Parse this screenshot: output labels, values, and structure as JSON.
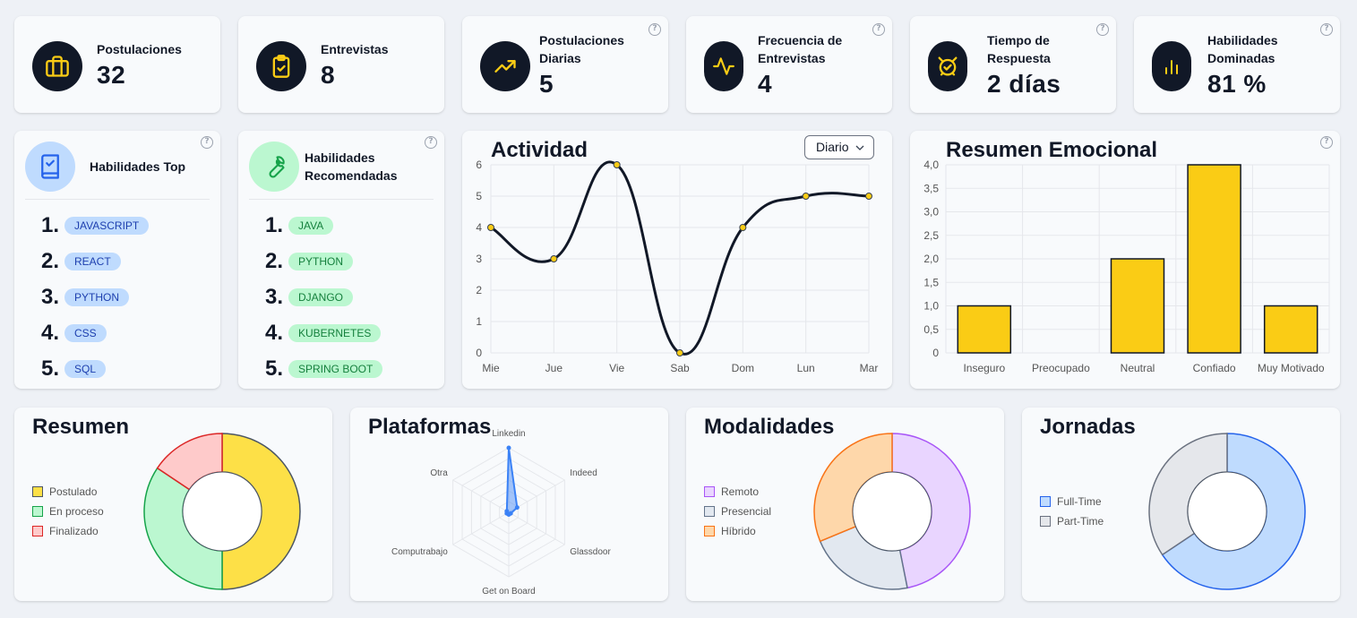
{
  "stats": [
    {
      "label": "Postulaciones",
      "value": "32",
      "icon": "briefcase-icon",
      "help": false
    },
    {
      "label": "Entrevistas",
      "value": "8",
      "icon": "clipboard-check-icon",
      "help": false
    },
    {
      "label": "Postulaciones Diarias",
      "value": "5",
      "icon": "trending-up-icon",
      "help": true
    },
    {
      "label": "Frecuencia de Entrevistas",
      "value": "4",
      "icon": "activity-icon",
      "help": true
    },
    {
      "label": "Tiempo de Respuesta",
      "value": "2 días",
      "icon": "alarm-clock-icon",
      "help": true
    },
    {
      "label": "Habilidades Dominadas",
      "value": "81 %",
      "icon": "bar-chart-icon",
      "help": true
    }
  ],
  "help_glyph": "?",
  "top_skills": {
    "title": "Habilidades Top",
    "icon": "book-check-icon",
    "items": [
      {
        "num": "1.",
        "label": "JAVASCRIPT"
      },
      {
        "num": "2.",
        "label": "REACT"
      },
      {
        "num": "3.",
        "label": "PYTHON"
      },
      {
        "num": "4.",
        "label": "CSS"
      },
      {
        "num": "5.",
        "label": "SQL"
      }
    ]
  },
  "recommended_skills": {
    "title": "Habilidades Recomendadas",
    "icon": "wrench-icon",
    "items": [
      {
        "num": "1.",
        "label": "JAVA"
      },
      {
        "num": "2.",
        "label": "PYTHON"
      },
      {
        "num": "3.",
        "label": "DJANGO"
      },
      {
        "num": "4.",
        "label": "KUBERNETES"
      },
      {
        "num": "5.",
        "label": "SPRING BOOT"
      }
    ]
  },
  "activity": {
    "title": "Actividad",
    "dropdown": "Diario",
    "dropdown_icon": "chevron-down-icon"
  },
  "emotional": {
    "title": "Resumen Emocional"
  },
  "summary": {
    "title": "Resumen"
  },
  "platforms": {
    "title": "Plataformas"
  },
  "modalities": {
    "title": "Modalidades"
  },
  "schedules": {
    "title": "Jornadas"
  },
  "chart_data": [
    {
      "id": "activity",
      "type": "line",
      "x": [
        "Mie",
        "Jue",
        "Vie",
        "Sab",
        "Dom",
        "Lun",
        "Mar"
      ],
      "values": [
        4,
        3,
        6,
        0,
        4,
        5,
        5
      ],
      "ylim": [
        0,
        6
      ],
      "yticks": [
        "0",
        "1",
        "2",
        "3",
        "4",
        "5",
        "6"
      ],
      "line_color": "#111827",
      "point_color": "#facc15"
    },
    {
      "id": "emotional",
      "type": "bar",
      "categories": [
        "Inseguro",
        "Preocupado",
        "Neutral",
        "Confiado",
        "Muy Motivado"
      ],
      "values": [
        1,
        0,
        2,
        4,
        1
      ],
      "ylim": [
        0,
        4
      ],
      "yticks": [
        "0",
        "0,5",
        "1,0",
        "1,5",
        "2,0",
        "2,5",
        "3,0",
        "3,5",
        "4,0"
      ],
      "bar_color": "#facc15"
    },
    {
      "id": "summary",
      "type": "pie",
      "donut": true,
      "labels": [
        "Postulado",
        "En proceso",
        "Finalizado"
      ],
      "values": [
        16,
        11,
        5
      ],
      "fill": [
        "#fde047",
        "#bbf7d0",
        "#fecaca"
      ],
      "stroke": [
        "#4b5563",
        "#16a34a",
        "#dc2626"
      ]
    },
    {
      "id": "platforms",
      "type": "radar",
      "labels": [
        "Linkedin",
        "Indeed",
        "Glassdoor",
        "Get on Board",
        "Computrabajo",
        "Otra"
      ],
      "values": [
        20,
        3,
        0,
        0,
        0,
        0
      ],
      "rmax": 20,
      "color": "#3b82f6"
    },
    {
      "id": "modalities",
      "type": "pie",
      "donut": true,
      "labels": [
        "Remoto",
        "Presencial",
        "Híbrido"
      ],
      "values": [
        15,
        7,
        10
      ],
      "fill": [
        "#e9d5ff",
        "#e2e8f0",
        "#fed7aa"
      ],
      "stroke": [
        "#a855f7",
        "#64748b",
        "#f97316"
      ]
    },
    {
      "id": "schedules",
      "type": "pie",
      "donut": true,
      "labels": [
        "Full-Time",
        "Part-Time"
      ],
      "values": [
        21,
        11
      ],
      "fill": [
        "#bfdbfe",
        "#e5e7eb"
      ],
      "stroke": [
        "#2563eb",
        "#6b7280"
      ]
    }
  ]
}
